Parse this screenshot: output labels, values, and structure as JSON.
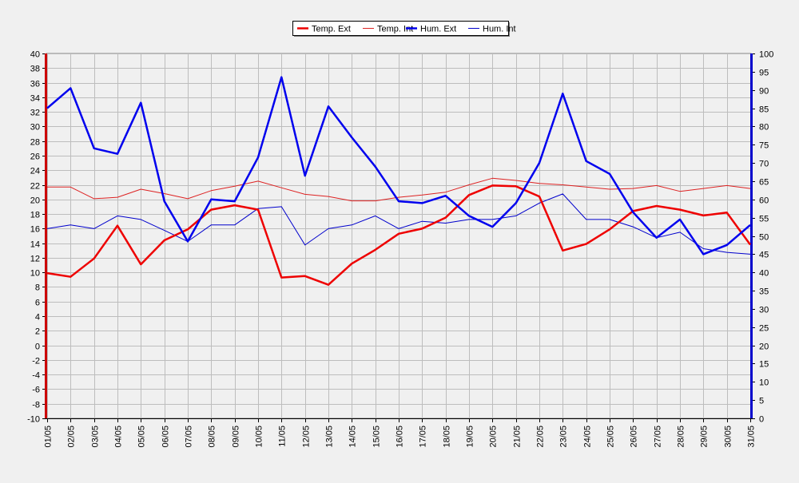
{
  "chart_data": {
    "type": "line",
    "categories": [
      "01/05",
      "02/05",
      "03/05",
      "04/05",
      "05/05",
      "06/05",
      "07/05",
      "08/05",
      "09/05",
      "10/05",
      "11/05",
      "12/05",
      "13/05",
      "14/05",
      "15/05",
      "16/05",
      "17/05",
      "18/05",
      "19/05",
      "20/05",
      "21/05",
      "22/05",
      "23/05",
      "24/05",
      "25/05",
      "26/05",
      "27/05",
      "28/05",
      "29/05",
      "30/05",
      "31/05"
    ],
    "y_left": {
      "min": -10,
      "max": 40,
      "step": 2,
      "color": "#cc0000"
    },
    "y_right": {
      "min": 0,
      "max": 100,
      "step": 5,
      "color": "#0000cc"
    },
    "grid": true,
    "legend_position": "top-center",
    "series": [
      {
        "name": "Temp. Ext",
        "axis": "left",
        "color": "#ee0000",
        "width": "bold",
        "values": [
          9.9,
          9.4,
          11.9,
          16.4,
          11.1,
          14.4,
          15.9,
          18.6,
          19.2,
          18.6,
          9.3,
          9.5,
          8.3,
          11.2,
          13.1,
          15.3,
          16.0,
          17.5,
          20.6,
          21.9,
          21.8,
          20.4,
          13.0,
          13.9,
          15.9,
          18.4,
          19.1,
          18.6,
          17.8,
          18.2,
          13.8
        ]
      },
      {
        "name": "Temp. Int",
        "axis": "left",
        "color": "#dd2222",
        "width": "thin",
        "values": [
          21.7,
          21.7,
          20.1,
          20.3,
          21.4,
          20.8,
          20.1,
          21.2,
          21.8,
          22.5,
          21.6,
          20.7,
          20.4,
          19.8,
          19.8,
          20.3,
          20.6,
          21.0,
          22.0,
          22.9,
          22.6,
          22.2,
          22.0,
          21.7,
          21.4,
          21.5,
          21.9,
          21.1,
          21.5,
          21.9,
          21.5
        ]
      },
      {
        "name": "Hum. Ext",
        "axis": "right",
        "color": "#0000ee",
        "width": "bold",
        "values": [
          85,
          90.5,
          74,
          72.5,
          86.5,
          59.5,
          48.5,
          60,
          59.5,
          71.5,
          93.5,
          66.5,
          85.5,
          77,
          69,
          59.5,
          59,
          61,
          55.5,
          52.5,
          59,
          70,
          89,
          70.5,
          67,
          56.5,
          49.5,
          54.5,
          45,
          47.5,
          53
        ]
      },
      {
        "name": "Hum. Int",
        "axis": "right",
        "color": "#0000cc",
        "width": "thin",
        "values": [
          52,
          53,
          52,
          55.5,
          54.5,
          51.5,
          48.5,
          53,
          53,
          57.5,
          58,
          47.5,
          52,
          53,
          55.5,
          52,
          54,
          53.5,
          54.5,
          54.5,
          55.5,
          59,
          61.5,
          54.5,
          54.5,
          52.5,
          49.5,
          51,
          46.5,
          45.5,
          45
        ]
      }
    ]
  }
}
